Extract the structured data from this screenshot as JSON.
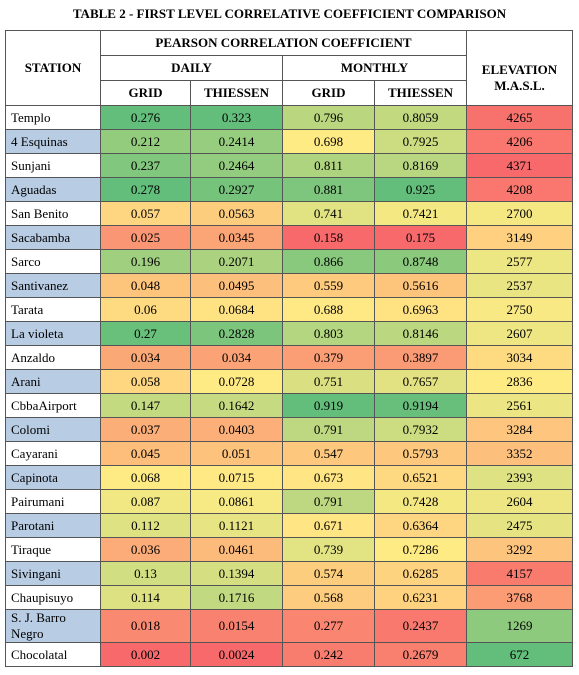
{
  "title": "TABLE 2 - FIRST LEVEL CORRELATIVE COEFFICIENT COMPARISON",
  "table": {
    "headers": {
      "station": "STATION",
      "pearson": "PEARSON CORRELATION COEFFICIENT",
      "daily": "DAILY",
      "monthly": "MONTHLY",
      "daily_grid": "GRID",
      "daily_thiessen": "THIESSEN",
      "monthly_grid": "GRID",
      "monthly_thiessen": "THIESSEN",
      "elevation": "ELEVATION M.A.S.L."
    },
    "rows": [
      [
        "Templo",
        0.276,
        0.323,
        0.796,
        0.8059,
        4265
      ],
      [
        "4 Esquinas",
        0.212,
        0.2414,
        0.698,
        0.7925,
        4206
      ],
      [
        "Sunjani",
        0.237,
        0.2464,
        0.811,
        0.8169,
        4371
      ],
      [
        "Aguadas",
        0.278,
        0.2927,
        0.881,
        0.925,
        4208
      ],
      [
        "San Benito",
        0.057,
        0.0563,
        0.741,
        0.7421,
        2700
      ],
      [
        "Sacabamba",
        0.025,
        0.0345,
        0.158,
        0.175,
        3149
      ],
      [
        "Sarco",
        0.196,
        0.2071,
        0.866,
        0.8748,
        2577
      ],
      [
        "Santivanez",
        0.048,
        0.0495,
        0.559,
        0.5616,
        2537
      ],
      [
        "Tarata",
        0.06,
        0.0684,
        0.688,
        0.6963,
        2750
      ],
      [
        "La violeta",
        0.27,
        0.2828,
        0.803,
        0.8146,
        2607
      ],
      [
        "Anzaldo",
        0.034,
        0.034,
        0.379,
        0.3897,
        3034
      ],
      [
        "Arani",
        0.058,
        0.0728,
        0.751,
        0.7657,
        2836
      ],
      [
        "CbbaAirport",
        0.147,
        0.1642,
        0.919,
        0.9194,
        2561
      ],
      [
        "Colomi",
        0.037,
        0.0403,
        0.791,
        0.7932,
        3284
      ],
      [
        "Cayarani",
        0.045,
        0.051,
        0.547,
        0.5793,
        3352
      ],
      [
        "Capinota",
        0.068,
        0.0715,
        0.673,
        0.6521,
        2393
      ],
      [
        "Pairumani",
        0.087,
        0.0861,
        0.791,
        0.7428,
        2604
      ],
      [
        "Parotani",
        0.112,
        0.1121,
        0.671,
        0.6364,
        2475
      ],
      [
        "Tiraque",
        0.036,
        0.0461,
        0.739,
        0.7286,
        3292
      ],
      [
        "Sivingani",
        0.13,
        0.1394,
        0.574,
        0.6285,
        4157
      ],
      [
        "Chaupisuyo",
        0.114,
        0.1716,
        0.568,
        0.6231,
        3768
      ],
      [
        "S. J. Barro Negro",
        0.018,
        0.0154,
        0.277,
        0.2437,
        1269
      ],
      [
        "Chocolatal",
        0.002,
        0.0024,
        0.242,
        0.2679,
        672
      ]
    ]
  },
  "color_scale": {
    "low": "#f8696b",
    "mid": "#ffeb84",
    "high": "#63be7b"
  },
  "scale_direction": [
    1,
    1,
    1,
    1,
    -1
  ],
  "station_colors": [
    "#ffffff",
    "#b8cce4"
  ]
}
